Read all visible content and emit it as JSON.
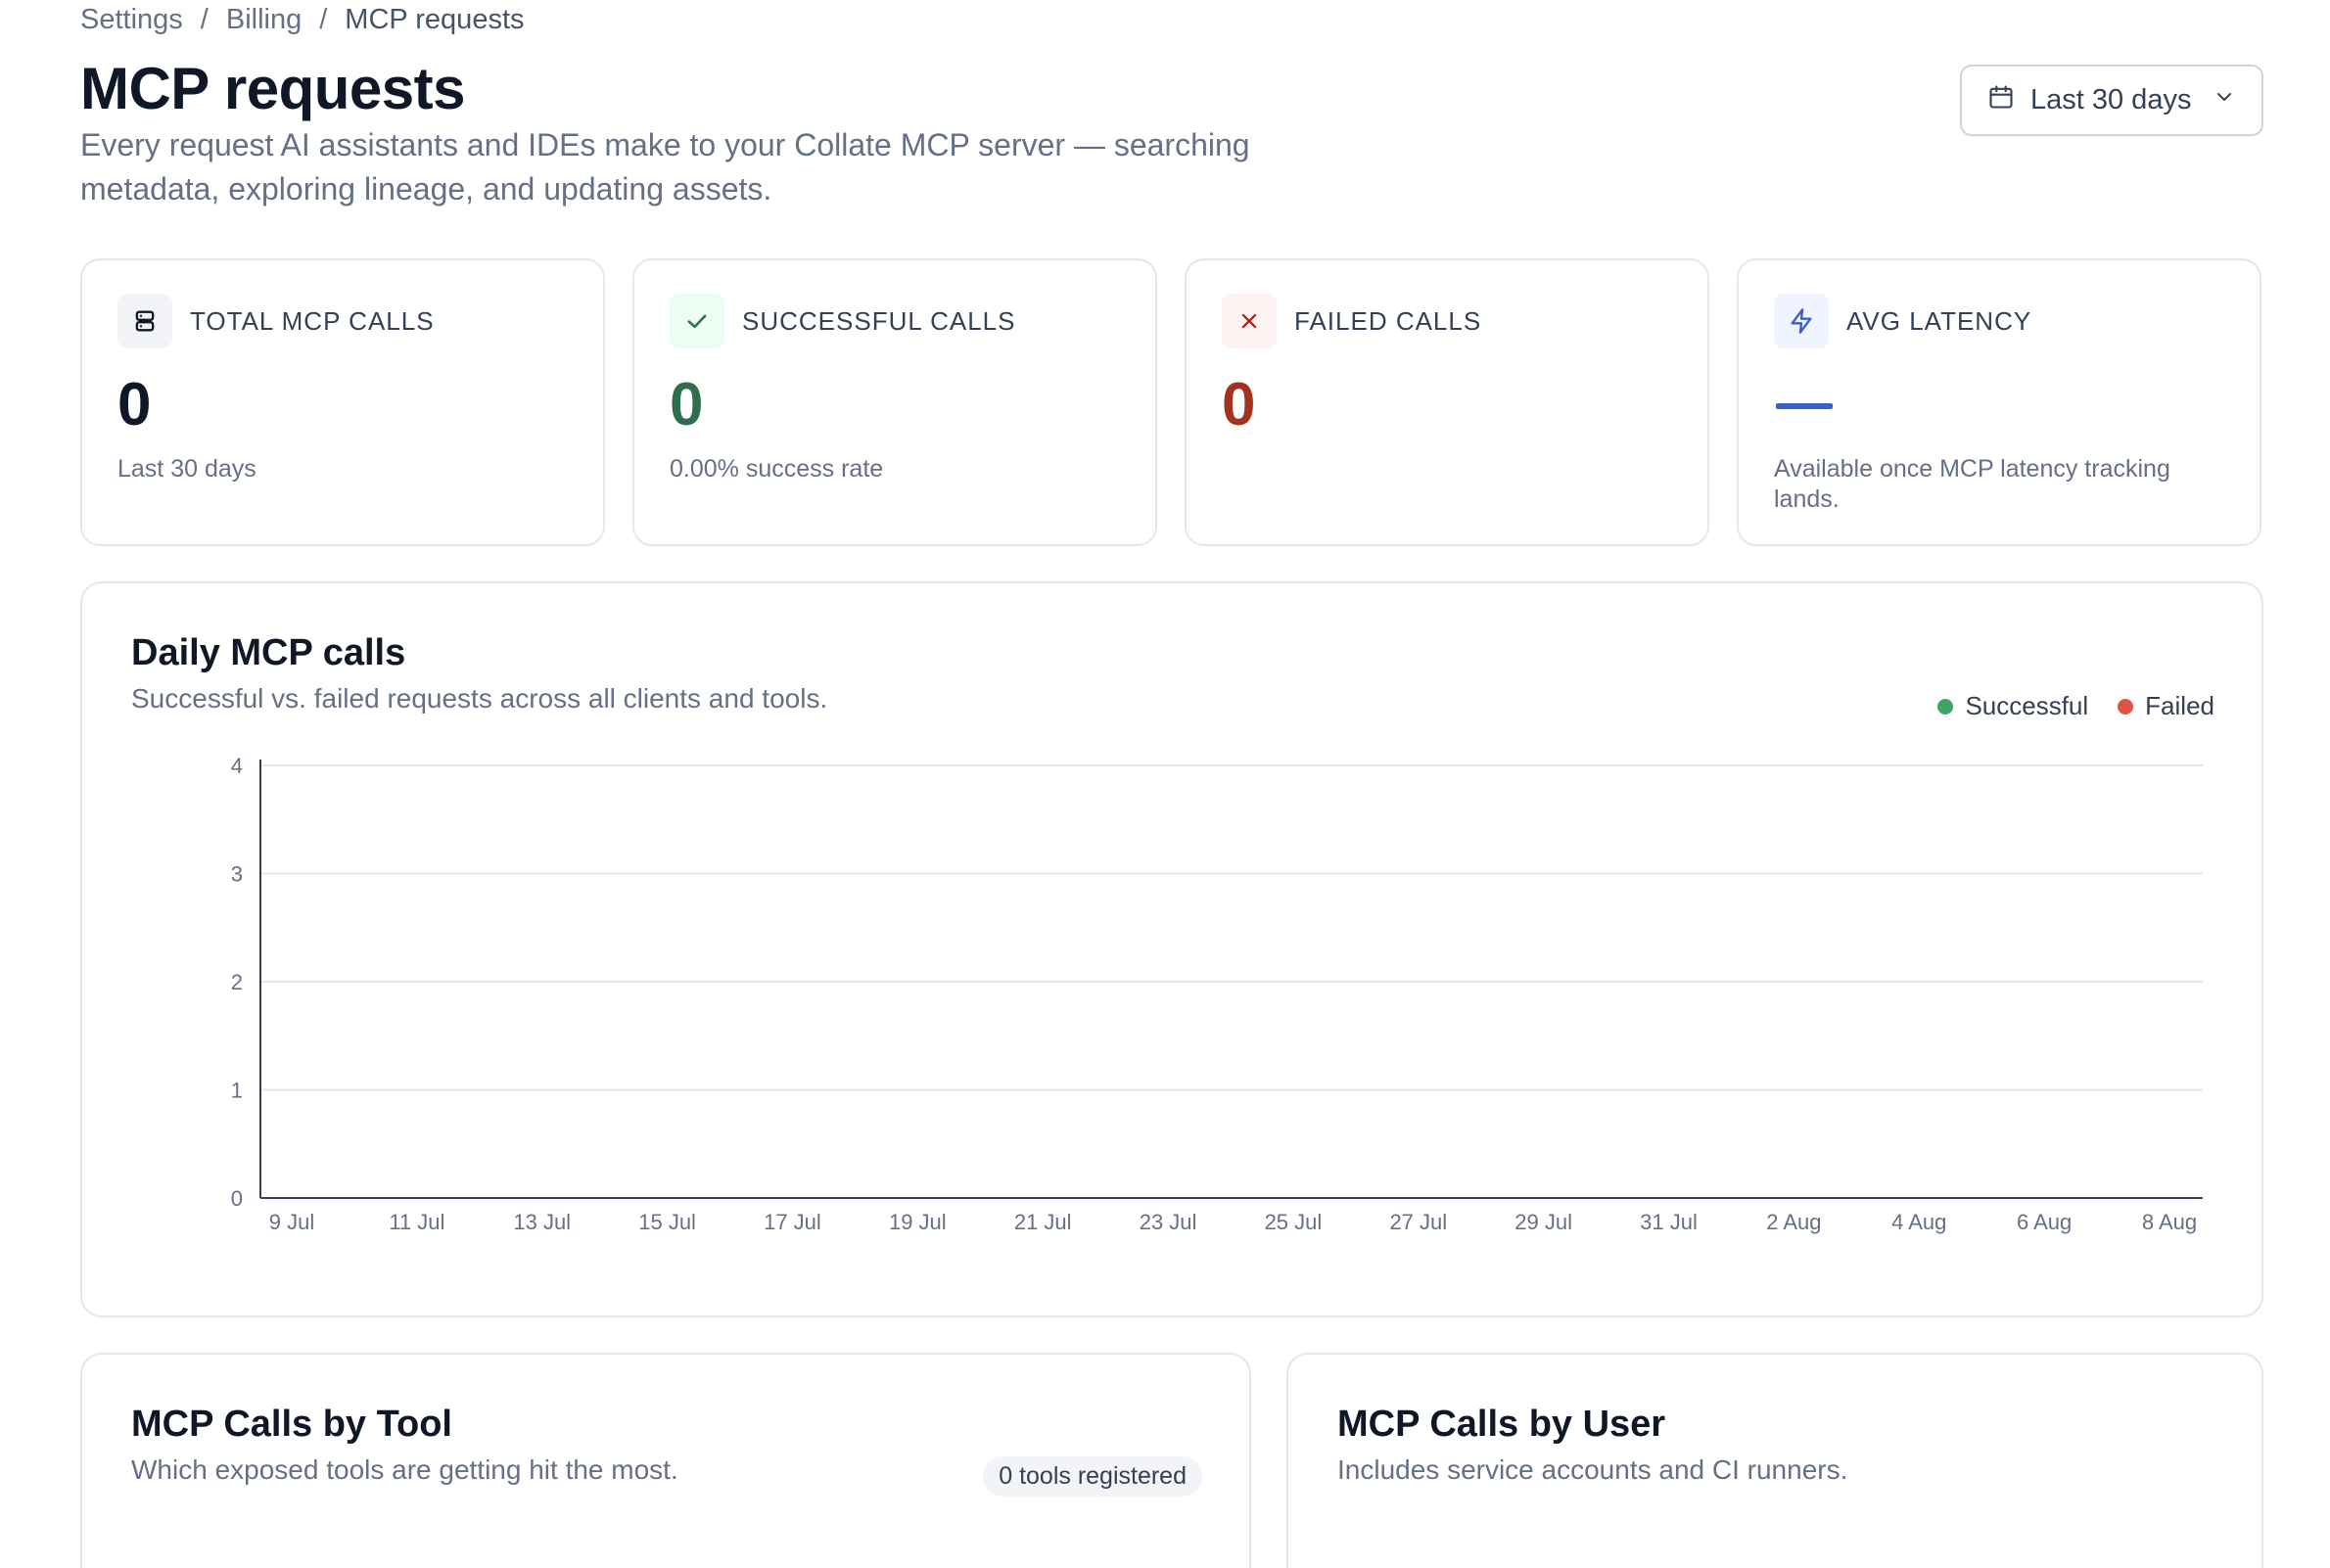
{
  "breadcrumb": {
    "items": [
      "Settings",
      "Billing",
      "MCP requests"
    ],
    "separator": "/"
  },
  "header": {
    "title": "MCP requests",
    "subtitle": "Every request AI assistants and IDEs make to your Collate MCP server — searching metadata, exploring lineage, and updating assets.",
    "range_label": "Last 30 days",
    "range_icon": "calendar-icon",
    "range_chevron": "chevron-down-icon"
  },
  "kpis": [
    {
      "label": "TOTAL MCP CALLS",
      "value": "0",
      "note": "Last 30 days",
      "icon": "server-icon",
      "value_color": "#101828",
      "icon_bg": "#f2f4f7",
      "icon_color": "#101828"
    },
    {
      "label": "SUCCESSFUL CALLS",
      "value": "0",
      "note": "0.00% success rate",
      "icon": "check-icon",
      "value_color": "#2f6f4e",
      "icon_bg": "#ecfdf3",
      "icon_color": "#2f6f4e"
    },
    {
      "label": "FAILED CALLS",
      "value": "0",
      "note": "",
      "icon": "x-icon",
      "value_color": "#a2331f",
      "icon_bg": "#fef3f2",
      "icon_color": "#b42318"
    },
    {
      "label": "AVG LATENCY",
      "value": "",
      "note": "Available once MCP latency tracking lands.",
      "icon": "lightning-icon",
      "value_color": "#3a5ec8",
      "icon_bg": "#eff4ff",
      "icon_color": "#3a5ec8"
    }
  ],
  "daily_chart": {
    "title": "Daily MCP calls",
    "subtitle": "Successful vs. failed requests across all clients and tools.",
    "legend": [
      {
        "name": "Successful",
        "color": "#3fa463"
      },
      {
        "name": "Failed",
        "color": "#e05443"
      }
    ]
  },
  "chart_data": {
    "type": "bar",
    "categories": [
      "9 Jul",
      "11 Jul",
      "13 Jul",
      "15 Jul",
      "17 Jul",
      "19 Jul",
      "21 Jul",
      "23 Jul",
      "25 Jul",
      "27 Jul",
      "29 Jul",
      "31 Jul",
      "2 Aug",
      "4 Aug",
      "6 Aug",
      "8 Aug"
    ],
    "series": [
      {
        "name": "Successful",
        "values": [
          0,
          0,
          0,
          0,
          0,
          0,
          0,
          0,
          0,
          0,
          0,
          0,
          0,
          0,
          0,
          0
        ],
        "color": "#3fa463"
      },
      {
        "name": "Failed",
        "values": [
          0,
          0,
          0,
          0,
          0,
          0,
          0,
          0,
          0,
          0,
          0,
          0,
          0,
          0,
          0,
          0
        ],
        "color": "#e05443"
      }
    ],
    "yticks": [
      "0",
      "1",
      "2",
      "3",
      "4"
    ],
    "ylim": [
      0,
      4
    ],
    "grid": true,
    "legend": "top-right",
    "title": "Daily MCP calls",
    "xlabel": "",
    "ylabel": ""
  },
  "by_tool": {
    "title": "MCP Calls by Tool",
    "subtitle": "Which exposed tools are getting hit the most.",
    "badge": "0 tools registered"
  },
  "by_user": {
    "title": "MCP Calls by User",
    "subtitle": "Includes service accounts and CI runners."
  }
}
